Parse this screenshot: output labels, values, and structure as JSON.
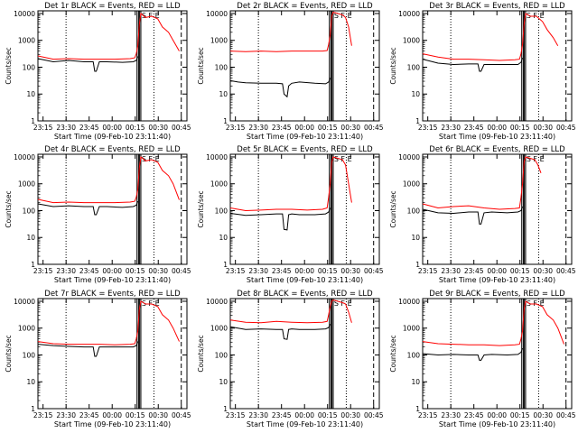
{
  "figure": {
    "background": "#ffffff"
  },
  "common": {
    "ylabel": "Counts/sec",
    "xlabel": "Start Time (09-Feb-10 23:11:40)",
    "xticks": [
      "23:15",
      "23:30",
      "23:45",
      "00:00",
      "00:15",
      "00:30",
      "00:45"
    ],
    "yticks": [
      "1",
      "10",
      "100",
      "1000",
      "10000"
    ],
    "xtick_minutes": [
      3.33,
      18.33,
      33.33,
      48.33,
      63.33,
      78.33,
      93.33
    ],
    "xlim_minutes": [
      0,
      97
    ],
    "ylim_log10": [
      0,
      4.1
    ],
    "events_color": "#000000",
    "lld_color": "#ff0000",
    "dotted_lines_minutes": [
      18.3,
      75.5
    ],
    "dashed_lines_minutes": [
      93.3
    ],
    "solid_lines_minutes": [
      64.5,
      65.5,
      66.2,
      67.0
    ]
  },
  "chart_data": [
    {
      "type": "line",
      "title": "Det 1r BLACK = Events, RED = LLD",
      "legend_marks": "SFE",
      "series": [
        {
          "name": "Events",
          "x": [
            0,
            10,
            20,
            30,
            36,
            37,
            38,
            40,
            45,
            55,
            62,
            64,
            65
          ],
          "log10y": [
            2.32,
            2.2,
            2.25,
            2.2,
            2.2,
            1.85,
            1.85,
            2.2,
            2.2,
            2.18,
            2.2,
            2.25,
            2.4
          ]
        },
        {
          "name": "LLD",
          "x": [
            0,
            10,
            20,
            30,
            40,
            50,
            60,
            63,
            64,
            65,
            66,
            67,
            70,
            74,
            78,
            81,
            85,
            88,
            92
          ],
          "log10y": [
            2.42,
            2.3,
            2.32,
            2.3,
            2.3,
            2.3,
            2.32,
            2.35,
            2.5,
            2.8,
            3.6,
            4.0,
            3.85,
            3.9,
            3.8,
            3.5,
            3.3,
            3.0,
            2.6
          ]
        }
      ]
    },
    {
      "type": "line",
      "title": "Det 2r BLACK = Events, RED = LLD",
      "legend_marks": "SFE",
      "series": [
        {
          "name": "Events",
          "x": [
            0,
            5,
            10,
            20,
            30,
            34,
            35,
            37,
            38,
            40,
            45,
            55,
            62,
            64,
            65
          ],
          "log10y": [
            1.5,
            1.45,
            1.42,
            1.4,
            1.4,
            1.38,
            1.0,
            0.9,
            1.3,
            1.4,
            1.45,
            1.4,
            1.38,
            1.45,
            1.6
          ]
        },
        {
          "name": "LLD",
          "x": [
            0,
            10,
            20,
            30,
            40,
            50,
            60,
            63,
            64,
            65,
            66,
            67,
            70,
            73,
            75,
            77,
            79
          ],
          "log10y": [
            2.6,
            2.58,
            2.6,
            2.58,
            2.6,
            2.6,
            2.6,
            2.62,
            2.85,
            3.2,
            3.9,
            4.05,
            4.0,
            3.95,
            3.85,
            3.5,
            2.8
          ]
        }
      ]
    },
    {
      "type": "line",
      "title": "Det 3r BLACK = Events, RED = LLD",
      "legend_marks": "SFE",
      "series": [
        {
          "name": "Events",
          "x": [
            0,
            10,
            20,
            30,
            36,
            37,
            38,
            40,
            45,
            55,
            62,
            64,
            65
          ],
          "log10y": [
            2.3,
            2.15,
            2.1,
            2.12,
            2.12,
            1.85,
            1.85,
            2.1,
            2.1,
            2.1,
            2.1,
            2.18,
            2.35
          ]
        },
        {
          "name": "LLD",
          "x": [
            0,
            10,
            20,
            30,
            40,
            50,
            60,
            63,
            64,
            65,
            66,
            67,
            70,
            74,
            78,
            81,
            85,
            88
          ],
          "log10y": [
            2.5,
            2.38,
            2.3,
            2.3,
            2.28,
            2.25,
            2.28,
            2.3,
            2.5,
            2.85,
            3.6,
            4.0,
            3.9,
            3.9,
            3.7,
            3.4,
            3.1,
            2.8
          ]
        }
      ]
    },
    {
      "type": "line",
      "title": "Det 4r BLACK = Events, RED = LLD",
      "legend_marks": "SFE",
      "series": [
        {
          "name": "Events",
          "x": [
            0,
            10,
            20,
            30,
            36,
            37,
            38,
            40,
            45,
            55,
            62,
            64,
            65
          ],
          "log10y": [
            2.25,
            2.15,
            2.18,
            2.15,
            2.15,
            1.85,
            1.85,
            2.15,
            2.15,
            2.12,
            2.15,
            2.2,
            2.35
          ]
        },
        {
          "name": "LLD",
          "x": [
            0,
            10,
            20,
            30,
            40,
            50,
            60,
            63,
            64,
            65,
            66,
            67,
            70,
            74,
            78,
            81,
            85,
            88,
            92
          ],
          "log10y": [
            2.42,
            2.3,
            2.32,
            2.3,
            2.3,
            2.3,
            2.32,
            2.35,
            2.5,
            2.8,
            3.6,
            4.0,
            3.85,
            3.9,
            3.8,
            3.5,
            3.3,
            3.0,
            2.4
          ]
        }
      ]
    },
    {
      "type": "line",
      "title": "Det 5r BLACK = Events, RED = LLD",
      "legend_marks": "SFE",
      "series": [
        {
          "name": "Events",
          "x": [
            0,
            10,
            20,
            30,
            34,
            35,
            37,
            38,
            40,
            45,
            55,
            62,
            64,
            65
          ],
          "log10y": [
            1.9,
            1.82,
            1.85,
            1.88,
            1.88,
            1.3,
            1.28,
            1.85,
            1.88,
            1.85,
            1.85,
            1.88,
            1.95,
            2.1
          ]
        },
        {
          "name": "LLD",
          "x": [
            0,
            10,
            20,
            30,
            40,
            50,
            60,
            63,
            64,
            65,
            66,
            67,
            70,
            73,
            75,
            77,
            79
          ],
          "log10y": [
            2.1,
            2.0,
            2.02,
            2.05,
            2.05,
            2.02,
            2.05,
            2.1,
            2.5,
            3.0,
            3.8,
            4.0,
            3.95,
            3.9,
            3.7,
            3.0,
            2.3
          ]
        }
      ]
    },
    {
      "type": "line",
      "title": "Det 6r BLACK = Events, RED = LLD",
      "legend_marks": "SFE",
      "series": [
        {
          "name": "Events",
          "x": [
            0,
            10,
            20,
            30,
            36,
            37,
            38,
            40,
            45,
            55,
            62,
            64,
            65
          ],
          "log10y": [
            2.05,
            1.92,
            1.9,
            1.95,
            1.95,
            1.5,
            1.5,
            1.92,
            1.95,
            1.92,
            1.95,
            2.0,
            2.15
          ]
        },
        {
          "name": "LLD",
          "x": [
            0,
            10,
            20,
            30,
            40,
            50,
            60,
            63,
            64,
            65,
            66,
            67,
            70,
            73,
            75,
            77
          ],
          "log10y": [
            2.25,
            2.1,
            2.15,
            2.18,
            2.1,
            2.05,
            2.08,
            2.1,
            2.5,
            3.0,
            3.8,
            4.0,
            3.95,
            3.9,
            3.7,
            3.4
          ]
        }
      ]
    },
    {
      "type": "line",
      "title": "Det 7r BLACK = Events, RED = LLD",
      "legend_marks": "SFE",
      "series": [
        {
          "name": "Events",
          "x": [
            0,
            10,
            20,
            30,
            36,
            37,
            38,
            40,
            45,
            55,
            62,
            64,
            65
          ],
          "log10y": [
            2.4,
            2.35,
            2.32,
            2.3,
            2.3,
            1.95,
            1.95,
            2.3,
            2.3,
            2.3,
            2.3,
            2.35,
            2.5
          ]
        },
        {
          "name": "LLD",
          "x": [
            0,
            10,
            20,
            30,
            40,
            50,
            60,
            63,
            64,
            65,
            66,
            67,
            70,
            74,
            78,
            81,
            85,
            88,
            92
          ],
          "log10y": [
            2.5,
            2.42,
            2.4,
            2.4,
            2.4,
            2.38,
            2.4,
            2.42,
            2.6,
            2.9,
            3.7,
            4.0,
            3.9,
            3.9,
            3.8,
            3.5,
            3.3,
            3.0,
            2.5
          ]
        }
      ]
    },
    {
      "type": "line",
      "title": "Det 8r BLACK = Events, RED = LLD",
      "legend_marks": "SFE",
      "series": [
        {
          "name": "Events",
          "x": [
            0,
            10,
            20,
            30,
            34,
            35,
            37,
            38,
            40,
            45,
            55,
            62,
            64,
            65
          ],
          "log10y": [
            3.05,
            2.95,
            2.97,
            2.95,
            2.95,
            2.6,
            2.58,
            2.95,
            2.97,
            2.95,
            2.95,
            2.97,
            3.02,
            3.15
          ]
        },
        {
          "name": "LLD",
          "x": [
            0,
            10,
            20,
            30,
            40,
            50,
            60,
            63,
            64,
            65,
            66,
            67,
            70,
            73,
            75,
            77,
            79
          ],
          "log10y": [
            3.3,
            3.22,
            3.2,
            3.25,
            3.22,
            3.2,
            3.22,
            3.25,
            3.5,
            3.8,
            4.0,
            4.05,
            4.0,
            3.95,
            3.9,
            3.6,
            3.2
          ]
        }
      ]
    },
    {
      "type": "line",
      "title": "Det 9r BLACK = Events, RED = LLD",
      "legend_marks": "SFE",
      "series": [
        {
          "name": "Events",
          "x": [
            0,
            10,
            20,
            30,
            36,
            37,
            38,
            40,
            45,
            55,
            62,
            64,
            65
          ],
          "log10y": [
            2.05,
            2.0,
            2.02,
            2.0,
            2.0,
            1.8,
            1.8,
            2.0,
            2.02,
            2.0,
            2.02,
            2.1,
            2.25
          ]
        },
        {
          "name": "LLD",
          "x": [
            0,
            10,
            20,
            30,
            40,
            50,
            60,
            63,
            64,
            65,
            66,
            67,
            70,
            74,
            78,
            81,
            85,
            88,
            92
          ],
          "log10y": [
            2.5,
            2.42,
            2.4,
            2.38,
            2.38,
            2.35,
            2.38,
            2.4,
            2.6,
            2.9,
            3.7,
            4.0,
            3.9,
            3.9,
            3.8,
            3.5,
            3.3,
            3.0,
            2.4
          ]
        }
      ]
    }
  ]
}
